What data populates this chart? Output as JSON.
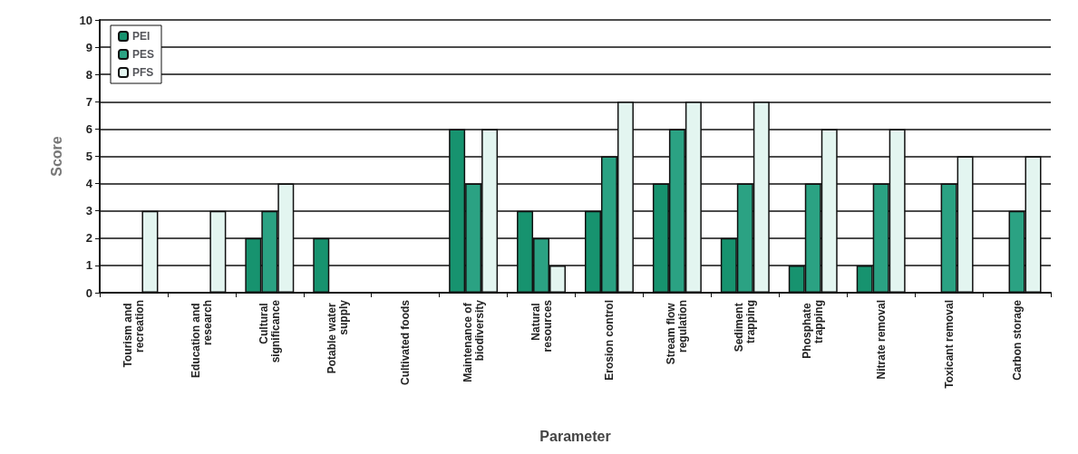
{
  "chart_data": {
    "type": "bar",
    "xlabel": "Parameter",
    "ylabel": "Score",
    "categories": [
      "Tourism and recreation",
      "Education and research",
      "Cultural significance",
      "Potable water supply",
      "Cultivated foods",
      "Maintenance of biodiversity",
      "Natural resources",
      "Erosion control",
      "Stream flow regulation",
      "Sediment trapping",
      "Phosphate trapping",
      "Nitrate removal",
      "Toxicant removal",
      "Carbon storage"
    ],
    "series": [
      {
        "name": "PEI",
        "color": "#17936f",
        "values": [
          0,
          0,
          2,
          2,
          0,
          6,
          3,
          3,
          4,
          2,
          1,
          1,
          0,
          0
        ]
      },
      {
        "name": "PES",
        "color": "#2ba283",
        "values": [
          0,
          0,
          3,
          0,
          0,
          4,
          2,
          5,
          6,
          4,
          4,
          4,
          4,
          3
        ]
      },
      {
        "name": "PFS",
        "color": "#e3f5f0",
        "values": [
          3,
          3,
          4,
          0,
          0,
          6,
          1,
          7,
          7,
          7,
          6,
          6,
          5,
          5
        ]
      }
    ],
    "ylim": [
      0,
      10
    ],
    "yticks": [
      0,
      1,
      2,
      3,
      4,
      5,
      6,
      7,
      8,
      9,
      10
    ],
    "grid": "y",
    "legend": "top left"
  }
}
